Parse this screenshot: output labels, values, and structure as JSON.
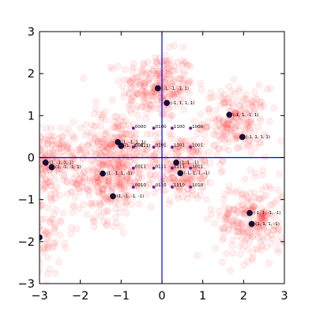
{
  "chart_data": {
    "type": "scatter",
    "title": "",
    "xlabel": "",
    "ylabel": "",
    "xlim": [
      -3,
      3
    ],
    "ylim": [
      -3,
      3
    ],
    "xticks": [
      -3,
      -2,
      -1,
      0,
      1,
      2,
      3
    ],
    "yticks": [
      3,
      2,
      1,
      0,
      -1,
      -2,
      -3
    ],
    "xtick_labels": [
      "−3",
      "−2",
      "−1",
      "0",
      "1",
      "2",
      "3"
    ],
    "ytick_labels": [
      "3",
      "2",
      "1",
      "0",
      "−1",
      "−2",
      "−3"
    ],
    "grid": false,
    "reference_lines": {
      "x": 0,
      "y": 0,
      "color": "#0000ff"
    },
    "cloud": {
      "color": "#ff0000",
      "clusters": [
        {
          "cx": -0.1,
          "cy": 1.7,
          "sx": 0.45,
          "sy": 0.4,
          "n": 260
        },
        {
          "cx": 1.8,
          "cy": 0.85,
          "sx": 0.4,
          "sy": 0.4,
          "n": 210
        },
        {
          "cx": -2.8,
          "cy": -0.1,
          "sx": 0.45,
          "sy": 0.4,
          "n": 240
        },
        {
          "cx": -1.15,
          "cy": 0.25,
          "sx": 0.45,
          "sy": 0.45,
          "n": 220
        },
        {
          "cx": 0.45,
          "cy": -0.25,
          "sx": 0.45,
          "sy": 0.4,
          "n": 220
        },
        {
          "cx": -1.3,
          "cy": -0.6,
          "sx": 0.45,
          "sy": 0.45,
          "n": 220
        },
        {
          "cx": 2.2,
          "cy": -1.5,
          "sx": 0.45,
          "sy": 0.45,
          "n": 240
        },
        {
          "cx": -3.0,
          "cy": -1.8,
          "sx": 0.3,
          "sy": 0.5,
          "n": 110
        }
      ]
    },
    "labeled_points": [
      {
        "x": -0.1,
        "y": 1.65,
        "label": "(-1, -1, -1, 1)"
      },
      {
        "x": 0.12,
        "y": 1.3,
        "label": "(-1, 1, 1, 1)"
      },
      {
        "x": 1.65,
        "y": 1.02,
        "label": "(-1, 1, -1, 1)"
      },
      {
        "x": 1.97,
        "y": 0.49,
        "label": "(-1, 1, 1, 1)"
      },
      {
        "x": -1.08,
        "y": 0.37,
        "label": "(1, -1, 1, 1)"
      },
      {
        "x": -1.0,
        "y": 0.28,
        "label": "(1, -1, -1, 1)"
      },
      {
        "x": -2.85,
        "y": -0.12,
        "label": "(1, -1, 1, 1)"
      },
      {
        "x": -2.7,
        "y": -0.23,
        "label": "(1, -1, -1, 1)"
      },
      {
        "x": 0.35,
        "y": -0.12,
        "label": "(1, 1, -1)"
      },
      {
        "x": 0.45,
        "y": -0.37,
        "label": "(-1, 1, 1, -1)"
      },
      {
        "x": -1.45,
        "y": -0.38,
        "label": "(1, -1, 1, -1)"
      },
      {
        "x": -1.2,
        "y": -0.92,
        "label": "(1, -1, -1, -1)"
      },
      {
        "x": 2.15,
        "y": -1.32,
        "label": "(-1, 1, -1, -1)"
      },
      {
        "x": 2.2,
        "y": -1.58,
        "label": "(1, 1, 1, -1)"
      },
      {
        "x": -3.0,
        "y": -1.9,
        "label": ""
      }
    ],
    "code_points": [
      {
        "x": -0.7,
        "y": 0.7,
        "label": "0000"
      },
      {
        "x": -0.2,
        "y": 0.7,
        "label": "0100"
      },
      {
        "x": 0.25,
        "y": 0.7,
        "label": "1100"
      },
      {
        "x": 0.7,
        "y": 0.7,
        "label": "1000"
      },
      {
        "x": -0.7,
        "y": 0.25,
        "label": "0001"
      },
      {
        "x": -0.2,
        "y": 0.25,
        "label": "0101"
      },
      {
        "x": 0.25,
        "y": 0.25,
        "label": "1101"
      },
      {
        "x": 0.7,
        "y": 0.25,
        "label": "1001"
      },
      {
        "x": -0.7,
        "y": -0.25,
        "label": "0011"
      },
      {
        "x": -0.2,
        "y": -0.25,
        "label": "0111"
      },
      {
        "x": 0.25,
        "y": -0.25,
        "label": "1111"
      },
      {
        "x": 0.7,
        "y": -0.25,
        "label": "1011"
      },
      {
        "x": -0.7,
        "y": -0.7,
        "label": "0010"
      },
      {
        "x": -0.2,
        "y": -0.7,
        "label": "0110"
      },
      {
        "x": 0.25,
        "y": -0.7,
        "label": "1110"
      },
      {
        "x": 0.7,
        "y": -0.7,
        "label": "1010"
      }
    ],
    "marker_colors": {
      "labeled_fill": "#1a0a3c",
      "code_fill": "#7a1ea0"
    }
  }
}
